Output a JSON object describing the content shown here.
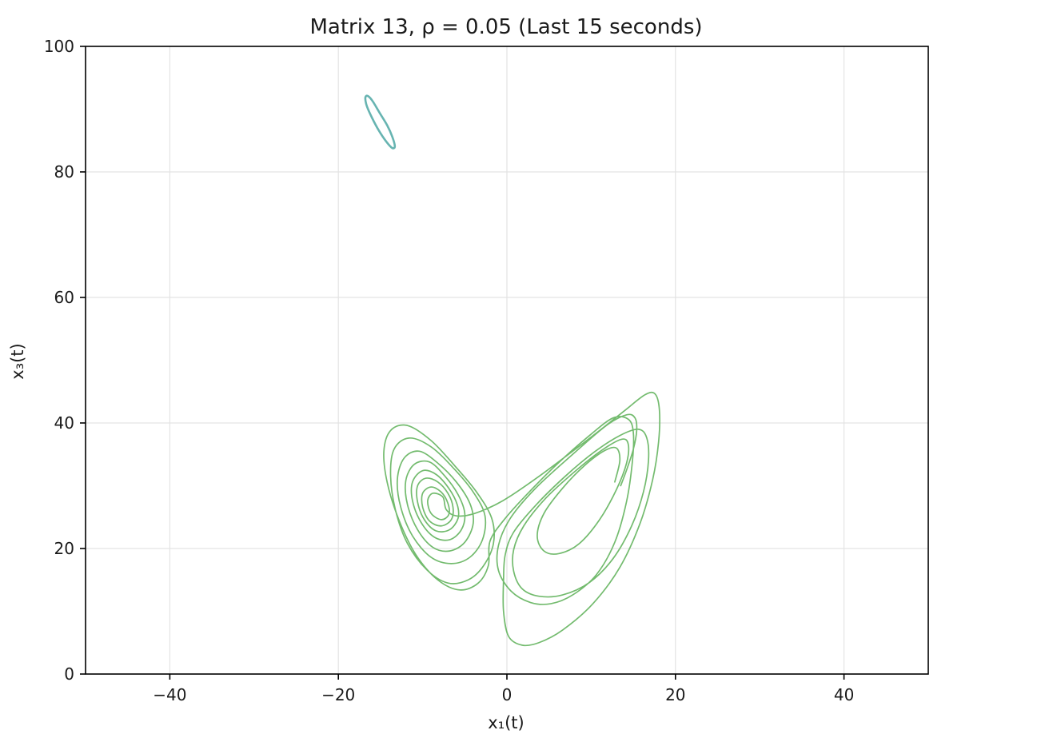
{
  "chart_data": {
    "type": "line",
    "title": "Matrix 13, ρ = 0.05 (Last 15 seconds)",
    "xlabel": "x₁(t)",
    "ylabel": "x₃(t)",
    "xlim": [
      -50,
      50
    ],
    "ylim": [
      0,
      100
    ],
    "xticks": [
      -40,
      -20,
      0,
      20,
      40
    ],
    "xtick_labels": [
      "−40",
      "−20",
      "0",
      "20",
      "40"
    ],
    "yticks": [
      0,
      20,
      40,
      60,
      80,
      100
    ],
    "ytick_labels": [
      "0",
      "20",
      "40",
      "60",
      "80",
      "100"
    ],
    "grid": true,
    "series": [
      {
        "color": "#5fb0ad",
        "closed": true,
        "points": [
          [
            -16.4,
            92.0
          ],
          [
            -15.9,
            91.2
          ],
          [
            -15.1,
            89.4
          ],
          [
            -14.2,
            87.4
          ],
          [
            -13.6,
            85.6
          ],
          [
            -13.3,
            84.1
          ],
          [
            -13.6,
            83.8
          ],
          [
            -14.3,
            84.8
          ],
          [
            -15.2,
            86.6
          ],
          [
            -16.0,
            88.6
          ],
          [
            -16.6,
            90.4
          ],
          [
            -16.8,
            91.6
          ],
          [
            -16.7,
            92.1
          ]
        ]
      },
      {
        "color": "#6cb766",
        "closed": false,
        "points": [
          [
            13.5,
            30.0
          ],
          [
            14.2,
            32.5
          ],
          [
            15.0,
            35.8
          ],
          [
            15.4,
            38.8
          ],
          [
            15.2,
            40.8
          ],
          [
            14.2,
            41.3
          ],
          [
            11.8,
            39.6
          ],
          [
            7.8,
            35.0
          ],
          [
            3.4,
            29.6
          ],
          [
            0.4,
            24.8
          ],
          [
            -1.0,
            20.5
          ],
          [
            -1.0,
            16.5
          ],
          [
            0.5,
            13.2
          ],
          [
            2.8,
            11.4
          ],
          [
            5.2,
            11.2
          ],
          [
            7.8,
            12.6
          ],
          [
            10.6,
            15.8
          ],
          [
            12.8,
            21.0
          ],
          [
            14.2,
            27.5
          ],
          [
            14.9,
            34.0
          ],
          [
            15.0,
            38.5
          ],
          [
            14.4,
            40.6
          ],
          [
            12.6,
            40.8
          ],
          [
            9.8,
            38.0
          ],
          [
            6.0,
            33.5
          ],
          [
            2.5,
            28.8
          ],
          [
            -0.2,
            24.8
          ],
          [
            -2.0,
            21.2
          ],
          [
            -2.2,
            17.3
          ],
          [
            -3.4,
            14.5
          ],
          [
            -5.6,
            13.4
          ],
          [
            -8.2,
            15.0
          ],
          [
            -10.8,
            19.0
          ],
          [
            -12.8,
            24.5
          ],
          [
            -14.2,
            30.5
          ],
          [
            -14.6,
            35.5
          ],
          [
            -13.8,
            38.8
          ],
          [
            -11.8,
            39.6
          ],
          [
            -9.0,
            37.2
          ],
          [
            -6.2,
            33.2
          ],
          [
            -3.6,
            29.0
          ],
          [
            -1.8,
            24.8
          ],
          [
            -1.6,
            20.8
          ],
          [
            -2.8,
            17.2
          ],
          [
            -4.6,
            15.0
          ],
          [
            -7.0,
            14.5
          ],
          [
            -9.5,
            16.6
          ],
          [
            -11.8,
            20.8
          ],
          [
            -13.2,
            26.0
          ],
          [
            -13.8,
            31.5
          ],
          [
            -13.4,
            35.8
          ],
          [
            -11.6,
            37.6
          ],
          [
            -9.0,
            36.2
          ],
          [
            -6.2,
            32.6
          ],
          [
            -3.9,
            28.8
          ],
          [
            -2.6,
            25.2
          ],
          [
            -2.9,
            21.4
          ],
          [
            -4.4,
            18.6
          ],
          [
            -6.6,
            17.6
          ],
          [
            -9.0,
            18.6
          ],
          [
            -11.2,
            22.0
          ],
          [
            -12.6,
            26.6
          ],
          [
            -13.0,
            31.0
          ],
          [
            -12.2,
            34.4
          ],
          [
            -10.4,
            35.5
          ],
          [
            -8.2,
            33.6
          ],
          [
            -6.0,
            30.6
          ],
          [
            -4.4,
            27.2
          ],
          [
            -4.0,
            24.0
          ],
          [
            -5.0,
            21.0
          ],
          [
            -6.8,
            19.6
          ],
          [
            -8.8,
            20.2
          ],
          [
            -10.6,
            23.0
          ],
          [
            -11.8,
            27.0
          ],
          [
            -12.0,
            30.8
          ],
          [
            -11.0,
            33.4
          ],
          [
            -9.2,
            33.8
          ],
          [
            -7.4,
            31.6
          ],
          [
            -5.8,
            28.6
          ],
          [
            -5.0,
            25.6
          ],
          [
            -5.4,
            23.0
          ],
          [
            -6.8,
            21.4
          ],
          [
            -8.6,
            21.8
          ],
          [
            -10.2,
            24.2
          ],
          [
            -11.2,
            27.6
          ],
          [
            -11.2,
            30.6
          ],
          [
            -10.0,
            32.4
          ],
          [
            -8.4,
            31.8
          ],
          [
            -6.9,
            29.6
          ],
          [
            -5.9,
            27.0
          ],
          [
            -5.8,
            24.8
          ],
          [
            -6.8,
            23.0
          ],
          [
            -8.4,
            22.8
          ],
          [
            -9.8,
            24.6
          ],
          [
            -10.6,
            27.4
          ],
          [
            -10.6,
            30.0
          ],
          [
            -9.6,
            31.2
          ],
          [
            -8.2,
            30.6
          ],
          [
            -7.0,
            28.8
          ],
          [
            -6.4,
            26.6
          ],
          [
            -6.6,
            24.6
          ],
          [
            -7.8,
            23.6
          ],
          [
            -9.2,
            24.4
          ],
          [
            -10.0,
            26.6
          ],
          [
            -10.0,
            28.8
          ],
          [
            -9.0,
            29.8
          ],
          [
            -7.8,
            29.0
          ],
          [
            -7.0,
            27.2
          ],
          [
            -6.9,
            25.4
          ],
          [
            -7.8,
            24.6
          ],
          [
            -9.0,
            25.6
          ],
          [
            -9.4,
            27.6
          ],
          [
            -8.8,
            28.8
          ],
          [
            -7.6,
            28.2
          ],
          [
            -7.2,
            26.2
          ],
          [
            -6.0,
            25.2
          ],
          [
            -3.8,
            25.6
          ],
          [
            -0.5,
            27.6
          ],
          [
            3.5,
            31.2
          ],
          [
            7.5,
            35.2
          ],
          [
            11.0,
            38.8
          ],
          [
            14.0,
            42.0
          ],
          [
            16.4,
            44.5
          ],
          [
            17.6,
            44.6
          ],
          [
            18.1,
            42.0
          ],
          [
            18.0,
            37.0
          ],
          [
            17.3,
            31.0
          ],
          [
            15.8,
            24.0
          ],
          [
            13.4,
            17.0
          ],
          [
            10.2,
            11.2
          ],
          [
            6.6,
            7.0
          ],
          [
            3.8,
            5.0
          ],
          [
            1.8,
            4.6
          ],
          [
            0.2,
            6.0
          ],
          [
            -0.4,
            10.0
          ],
          [
            -0.4,
            15.0
          ],
          [
            -0.2,
            19.0
          ],
          [
            0.8,
            22.6
          ],
          [
            3.5,
            27.0
          ],
          [
            7.0,
            31.6
          ],
          [
            10.4,
            35.4
          ],
          [
            13.4,
            38.0
          ],
          [
            15.6,
            39.0
          ],
          [
            16.6,
            37.6
          ],
          [
            16.8,
            34.0
          ],
          [
            16.2,
            29.0
          ],
          [
            14.8,
            23.6
          ],
          [
            12.6,
            18.4
          ],
          [
            9.8,
            14.6
          ],
          [
            6.6,
            12.6
          ],
          [
            3.8,
            12.4
          ],
          [
            1.8,
            13.6
          ],
          [
            0.8,
            16.4
          ],
          [
            0.8,
            19.8
          ],
          [
            2.0,
            23.6
          ],
          [
            4.6,
            28.0
          ],
          [
            8.0,
            32.2
          ],
          [
            11.2,
            35.6
          ],
          [
            13.6,
            37.4
          ],
          [
            14.4,
            36.6
          ],
          [
            14.2,
            33.6
          ],
          [
            13.0,
            29.4
          ],
          [
            11.0,
            24.6
          ],
          [
            8.6,
            20.8
          ],
          [
            6.2,
            19.2
          ],
          [
            4.4,
            19.6
          ],
          [
            3.6,
            22.0
          ],
          [
            4.4,
            25.6
          ],
          [
            6.6,
            29.6
          ],
          [
            9.2,
            33.2
          ],
          [
            11.6,
            35.6
          ],
          [
            13.0,
            36.0
          ],
          [
            13.4,
            34.0
          ],
          [
            12.8,
            30.6
          ]
        ]
      }
    ]
  }
}
